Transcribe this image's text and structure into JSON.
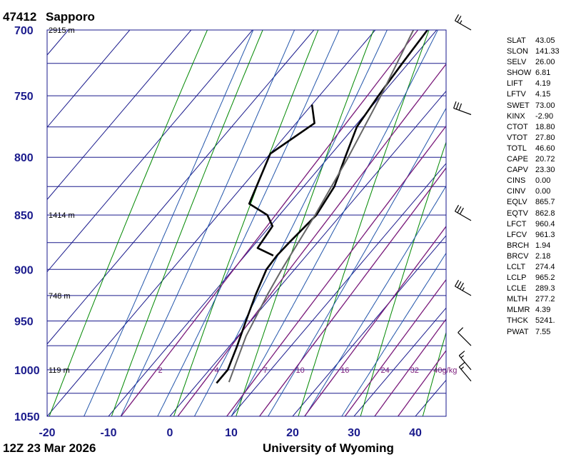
{
  "header": {
    "station_id": "47412",
    "station_name": "Sapporo"
  },
  "footer": {
    "time": "12Z 23 Mar 2026",
    "source": "University of Wyoming"
  },
  "colors": {
    "grid": "#1a1a8c",
    "dry_adiabat": "#008800",
    "moist_adiabat": "#2255aa",
    "mixing_ratio": "#7a1a7a",
    "profile": "#000000",
    "parcel": "#666666"
  },
  "chart_data": {
    "type": "line",
    "title": "",
    "xlabel": "",
    "ylabel": "",
    "x_scale": "linear (skewed)",
    "y_scale": "log",
    "xlim": [
      -20,
      45
    ],
    "ylim": [
      1050,
      700
    ],
    "x_ticks": [
      "-20",
      "-10",
      "0",
      "10",
      "20",
      "30",
      "40"
    ],
    "y_ticks": [
      "700",
      "750",
      "800",
      "850",
      "900",
      "950",
      "1000",
      "1050"
    ],
    "grid": true,
    "height_labels": [
      {
        "p": 700,
        "text": "2915 m"
      },
      {
        "p": 850,
        "text": "1414 m"
      },
      {
        "p": 925,
        "text": "748 m"
      },
      {
        "p": 1000,
        "text": "119 m"
      }
    ],
    "mixing_ratio_labels": [
      "2",
      "4",
      "7",
      "10",
      "16",
      "24",
      "32",
      "40g/kg"
    ],
    "mixing_ratio_values": [
      2,
      4,
      7,
      10,
      16,
      24,
      32,
      40
    ],
    "series": [
      {
        "role": "temperature",
        "points": [
          [
            1014,
            3.0
          ],
          [
            1000,
            3.0
          ],
          [
            975,
            1.2
          ],
          [
            950,
            -0.8
          ],
          [
            925,
            -2.8
          ],
          [
            900,
            -4.6
          ],
          [
            887,
            -4.8
          ],
          [
            875,
            -4.6
          ],
          [
            850,
            -4.0
          ],
          [
            825,
            -5.0
          ],
          [
            800,
            -7.3
          ],
          [
            775,
            -9.6
          ],
          [
            750,
            -10.4
          ],
          [
            725,
            -11.0
          ],
          [
            700,
            -11.5
          ]
        ]
      },
      {
        "role": "dewpoint",
        "points": [
          [
            887,
            -5.4
          ],
          [
            880,
            -9.0
          ],
          [
            860,
            -9.6
          ],
          [
            850,
            -12.0
          ],
          [
            840,
            -16.5
          ],
          [
            797,
            -20
          ],
          [
            772,
            -17.0
          ],
          [
            757,
            -20
          ]
        ]
      },
      {
        "role": "parcel",
        "points": [
          [
            1013,
            4.9
          ],
          [
            965,
            1.3
          ],
          [
            925,
            -0.9
          ],
          [
            900,
            -2.1
          ],
          [
            850,
            -4.2
          ],
          [
            800,
            -6.8
          ],
          [
            750,
            -10.0
          ],
          [
            700,
            -13.8
          ]
        ]
      }
    ]
  },
  "indices": [
    {
      "key": "SLAT",
      "value": "43.05"
    },
    {
      "key": "SLON",
      "value": "141.33"
    },
    {
      "key": "SELV",
      "value": "26.00"
    },
    {
      "key": "SHOW",
      "value": "6.81"
    },
    {
      "key": "LIFT",
      "value": "4.19"
    },
    {
      "key": "LFTV",
      "value": "4.15"
    },
    {
      "key": "SWET",
      "value": "73.00"
    },
    {
      "key": "KINX",
      "value": "-2.90"
    },
    {
      "key": "CTOT",
      "value": "18.80"
    },
    {
      "key": "VTOT",
      "value": "27.80"
    },
    {
      "key": "TOTL",
      "value": "46.60"
    },
    {
      "key": "CAPE",
      "value": "20.72"
    },
    {
      "key": "CAPV",
      "value": "23.30"
    },
    {
      "key": "CINS",
      "value": "0.00"
    },
    {
      "key": "CINV",
      "value": "0.00"
    },
    {
      "key": "EQLV",
      "value": "865.7"
    },
    {
      "key": "EQTV",
      "value": "862.8"
    },
    {
      "key": "LFCT",
      "value": "960.4"
    },
    {
      "key": "LFCV",
      "value": "961.3"
    },
    {
      "key": "BRCH",
      "value": "1.94"
    },
    {
      "key": "BRCV",
      "value": "2.18"
    },
    {
      "key": "LCLT",
      "value": "274.4"
    },
    {
      "key": "LCLP",
      "value": "965.2"
    },
    {
      "key": "LCLE",
      "value": "289.3"
    },
    {
      "key": "MLTH",
      "value": "277.2"
    },
    {
      "key": "MLMR",
      "value": "4.39"
    },
    {
      "key": "THCK",
      "value": "5241."
    },
    {
      "key": "PWAT",
      "value": "7.55"
    }
  ],
  "wind_barbs": [
    {
      "p": 700,
      "dir": 300,
      "kt": 25
    },
    {
      "p": 765,
      "dir": 290,
      "kt": 30
    },
    {
      "p": 855,
      "dir": 300,
      "kt": 30
    },
    {
      "p": 925,
      "dir": 300,
      "kt": 35
    },
    {
      "p": 975,
      "dir": 315,
      "kt": 10
    },
    {
      "p": 1000,
      "dir": 320,
      "kt": 15
    },
    {
      "p": 1012,
      "dir": 320,
      "kt": 15
    }
  ]
}
